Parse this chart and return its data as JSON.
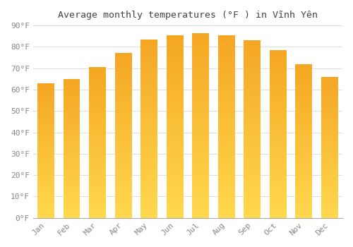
{
  "title": "Average monthly temperatures (°F ) in Vĩnh Yên",
  "months": [
    "Jan",
    "Feb",
    "Mar",
    "Apr",
    "May",
    "Jun",
    "Jul",
    "Aug",
    "Sep",
    "Oct",
    "Nov",
    "Dec"
  ],
  "values": [
    63,
    65,
    70.5,
    77,
    83.5,
    85.5,
    86.5,
    85.5,
    83,
    78.5,
    72,
    66
  ],
  "bar_color_top": "#F5A623",
  "bar_color_bottom": "#FFD84D",
  "background_color": "#FFFFFF",
  "grid_color": "#DDDDDD",
  "ylim": [
    0,
    90
  ],
  "yticks": [
    0,
    10,
    20,
    30,
    40,
    50,
    60,
    70,
    80,
    90
  ],
  "ytick_labels": [
    "0°F",
    "10°F",
    "20°F",
    "30°F",
    "40°F",
    "50°F",
    "60°F",
    "70°F",
    "80°F",
    "90°F"
  ],
  "title_fontsize": 9.5,
  "tick_fontsize": 8,
  "bar_width": 0.65
}
